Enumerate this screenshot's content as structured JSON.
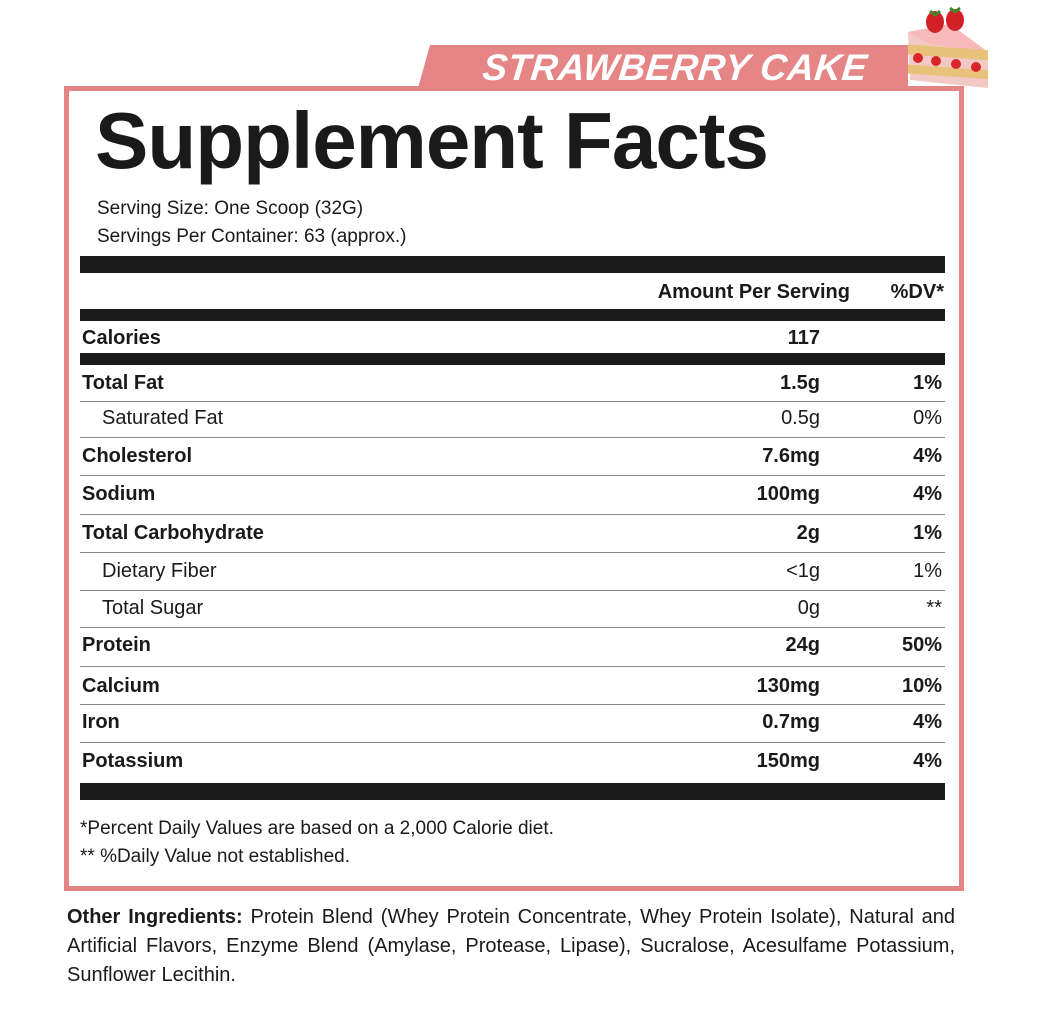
{
  "flavor": "STRAWBERRY CAKE",
  "title": "Supplement Facts",
  "serving_size": "Serving Size: One Scoop (32G)",
  "servings_per_container": "Servings Per Container: 63 (approx.)",
  "header": {
    "amount": "Amount Per Serving",
    "dv": "%DV*"
  },
  "calories": {
    "label": "Calories",
    "amount": "117"
  },
  "nutrients": [
    {
      "label": "Total Fat",
      "amount": "1.5g",
      "dv": "1%",
      "bold": true
    },
    {
      "label": "Saturated Fat",
      "amount": "0.5g",
      "dv": "0%",
      "bold": false
    },
    {
      "label": "Cholesterol",
      "amount": "7.6mg",
      "dv": "4%",
      "bold": true
    },
    {
      "label": "Sodium",
      "amount": "100mg",
      "dv": "4%",
      "bold": true
    },
    {
      "label": "Total Carbohydrate",
      "amount": "2g",
      "dv": "1%",
      "bold": true
    },
    {
      "label": "Dietary Fiber",
      "amount": "<1g",
      "dv": "1%",
      "bold": false
    },
    {
      "label": "Total Sugar",
      "amount": "0g",
      "dv": "**",
      "bold": false
    },
    {
      "label": "Protein",
      "amount": "24g",
      "dv": "50%",
      "bold": true
    },
    {
      "label": "Calcium",
      "amount": "130mg",
      "dv": "10%",
      "bold": true
    },
    {
      "label": "Iron",
      "amount": "0.7mg",
      "dv": "4%",
      "bold": true
    },
    {
      "label": "Potassium",
      "amount": "150mg",
      "dv": "4%",
      "bold": true
    }
  ],
  "footnotes": [
    "*Percent Daily Values are based on a 2,000 Calorie diet.",
    "** %Daily Value not established."
  ],
  "other_ingredients": {
    "label": "Other Ingredients:",
    "text": "Protein Blend (Whey Protein Concentrate, Whey Protein Isolate), Natural and Artificial Flavors, Enzyme Blend (Amylase, Protease, Lipase), Sucralose, Acesulfame Potassium, Sunflower Lecithin."
  },
  "colors": {
    "accent": "#e58585",
    "text": "#1a1a1a"
  },
  "icons": {
    "cake": "strawberry-cake-slice-image"
  }
}
